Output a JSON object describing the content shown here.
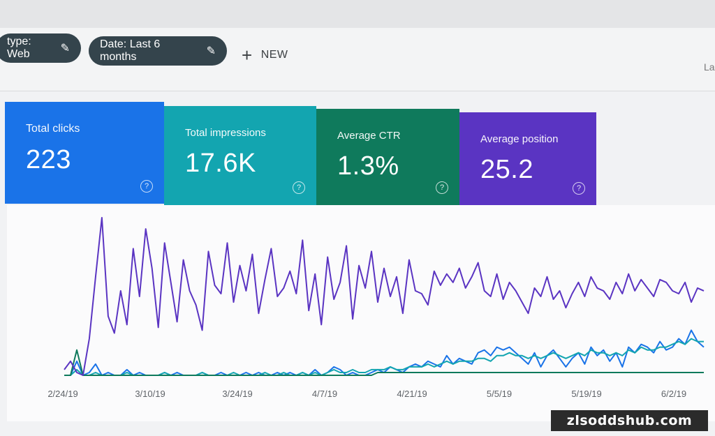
{
  "filters": {
    "type_chip": "type: Web",
    "date_chip": "Date: Last 6 months",
    "new_label": "NEW",
    "edge_text": "La"
  },
  "cards": [
    {
      "label": "Total clicks",
      "value": "223",
      "color": "#1a73e8"
    },
    {
      "label": "Total impressions",
      "value": "17.6K",
      "color": "#13a5b0"
    },
    {
      "label": "Average CTR",
      "value": "1.3%",
      "color": "#0f7a5c"
    },
    {
      "label": "Average position",
      "value": "25.2",
      "color": "#5a34c2"
    }
  ],
  "chart_data": {
    "type": "line",
    "x_labels": [
      "2/24/19",
      "3/10/19",
      "3/24/19",
      "4/7/19",
      "4/21/19",
      "5/5/19",
      "5/19/19",
      "6/2/19"
    ],
    "series": [
      {
        "color": "#1a73e8",
        "values": [
          0,
          0,
          5,
          0,
          1,
          4,
          0,
          1,
          0,
          0,
          2,
          0,
          1,
          0,
          0,
          0,
          1,
          0,
          1,
          0,
          0,
          0,
          1,
          0,
          0,
          1,
          0,
          0,
          0,
          1,
          0,
          1,
          0,
          0,
          1,
          0,
          1,
          0,
          1,
          0,
          2,
          0,
          1,
          3,
          2,
          0,
          1,
          0,
          0,
          1,
          2,
          1,
          3,
          2,
          1,
          3,
          4,
          3,
          5,
          4,
          3,
          7,
          4,
          6,
          5,
          4,
          8,
          9,
          7,
          10,
          9,
          10,
          8,
          6,
          4,
          8,
          3,
          7,
          9,
          6,
          3,
          6,
          8,
          4,
          10,
          7,
          9,
          5,
          8,
          3,
          10,
          8,
          11,
          10,
          8,
          12,
          9,
          10,
          13,
          11,
          16,
          12,
          10
        ]
      },
      {
        "color": "#13a5b0",
        "values": [
          0,
          0,
          2,
          0,
          0,
          1,
          0,
          0,
          0,
          0,
          1,
          0,
          0,
          0,
          0,
          0,
          1,
          0,
          0,
          0,
          0,
          0,
          1,
          0,
          0,
          0,
          0,
          1,
          0,
          0,
          0,
          0,
          1,
          0,
          0,
          1,
          0,
          0,
          1,
          0,
          1,
          0,
          1,
          2,
          1,
          1,
          2,
          1,
          1,
          2,
          2,
          2,
          3,
          2,
          2,
          3,
          3,
          3,
          4,
          3,
          4,
          5,
          4,
          5,
          5,
          5,
          6,
          6,
          5,
          7,
          7,
          8,
          7,
          7,
          6,
          7,
          6,
          7,
          8,
          7,
          6,
          7,
          8,
          7,
          9,
          8,
          8,
          7,
          8,
          7,
          9,
          8,
          10,
          9,
          9,
          10,
          10,
          11,
          12,
          11,
          13,
          12,
          12
        ]
      },
      {
        "color": "#0f7a5c",
        "values": [
          0,
          0,
          9,
          0,
          0,
          0,
          0,
          0,
          0,
          0,
          0,
          0,
          0,
          0,
          0,
          0,
          0,
          0,
          0,
          0,
          0,
          0,
          0,
          0,
          0,
          0,
          0,
          0,
          0,
          0,
          0,
          0,
          0,
          0,
          0,
          0,
          0,
          0,
          0,
          0,
          0,
          0,
          0,
          0,
          0,
          0,
          0,
          0,
          0,
          0,
          1,
          1,
          1,
          1,
          1,
          1,
          1,
          1,
          1,
          1,
          1,
          1,
          1,
          1,
          1,
          1,
          1,
          1,
          1,
          1,
          1,
          1,
          1,
          1,
          1,
          1,
          1,
          1,
          1,
          1,
          1,
          1,
          1,
          1,
          1,
          1,
          1,
          1,
          1,
          1,
          1,
          1,
          1,
          1,
          1,
          1,
          1,
          1,
          1,
          1,
          1,
          1,
          1
        ]
      },
      {
        "color": "#5a34c2",
        "values": [
          2,
          5,
          1,
          0,
          13,
          35,
          56,
          21,
          15,
          30,
          18,
          45,
          28,
          52,
          38,
          17,
          47,
          33,
          19,
          41,
          30,
          25,
          16,
          44,
          32,
          29,
          47,
          26,
          39,
          30,
          43,
          22,
          34,
          45,
          28,
          31,
          37,
          29,
          48,
          23,
          36,
          18,
          42,
          27,
          33,
          46,
          20,
          39,
          31,
          44,
          26,
          38,
          28,
          35,
          22,
          41,
          30,
          29,
          25,
          37,
          32,
          36,
          33,
          38,
          31,
          35,
          40,
          30,
          28,
          36,
          27,
          33,
          30,
          26,
          22,
          31,
          28,
          35,
          27,
          30,
          24,
          29,
          33,
          28,
          35,
          31,
          30,
          27,
          33,
          29,
          36,
          30,
          34,
          31,
          28,
          34,
          33,
          30,
          29,
          33,
          26,
          31,
          30
        ]
      }
    ]
  }
}
